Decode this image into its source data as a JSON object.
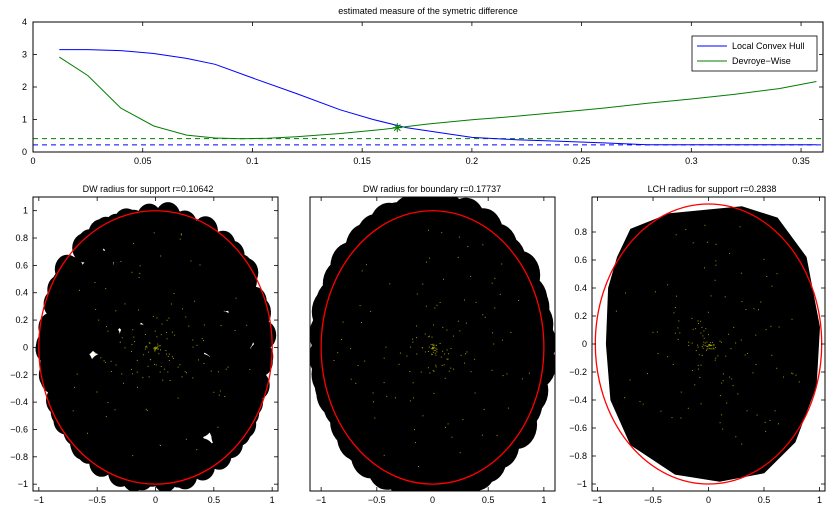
{
  "chart_data": [
    {
      "type": "line",
      "title": "estimated measure of the symetric difference",
      "xlabel": "",
      "ylabel": "",
      "xlim": [
        0,
        0.36
      ],
      "ylim": [
        0,
        4
      ],
      "xticks": [
        0,
        0.05,
        0.1,
        0.15,
        0.2,
        0.25,
        0.3,
        0.35
      ],
      "xtick_labels": [
        "0",
        "0.05",
        "0.1",
        "0.15",
        "0.2",
        "0.25",
        "0.3",
        "0.35"
      ],
      "yticks": [
        0,
        1,
        2,
        3,
        4
      ],
      "ytick_labels": [
        "0",
        "1",
        "2",
        "3",
        "4"
      ],
      "legend_position": "top-right",
      "series": [
        {
          "name": "Local Convex Hull",
          "color": "#0000ff",
          "x": [
            0.012,
            0.025,
            0.04,
            0.055,
            0.07,
            0.083,
            0.1,
            0.12,
            0.14,
            0.155,
            0.17,
            0.19,
            0.2,
            0.22,
            0.24,
            0.26,
            0.28,
            0.3,
            0.32,
            0.34,
            0.357
          ],
          "y": [
            3.15,
            3.15,
            3.12,
            3.03,
            2.88,
            2.7,
            2.28,
            1.8,
            1.3,
            1.0,
            0.75,
            0.55,
            0.45,
            0.38,
            0.33,
            0.28,
            0.22,
            0.22,
            0.22,
            0.22,
            0.22
          ]
        },
        {
          "name": "Devroye−Wise",
          "color": "#007f00",
          "x": [
            0.012,
            0.025,
            0.04,
            0.055,
            0.07,
            0.083,
            0.095,
            0.107,
            0.12,
            0.14,
            0.16,
            0.18,
            0.2,
            0.22,
            0.24,
            0.26,
            0.28,
            0.3,
            0.32,
            0.34,
            0.357
          ],
          "y": [
            2.92,
            2.35,
            1.35,
            0.8,
            0.52,
            0.43,
            0.41,
            0.42,
            0.47,
            0.57,
            0.7,
            0.86,
            0.99,
            1.1,
            1.22,
            1.35,
            1.5,
            1.63,
            1.78,
            1.95,
            2.17
          ]
        }
      ],
      "reference_lines": [
        {
          "orientation": "horizontal",
          "y": 0.41,
          "color": "#007f00",
          "style": "dashed"
        },
        {
          "orientation": "horizontal",
          "y": 0.22,
          "color": "#0000ff",
          "style": "dashed"
        }
      ],
      "markers": [
        {
          "x": 0.166,
          "y": 0.75,
          "symbol": "asterisk",
          "color": "#007f00"
        }
      ]
    },
    {
      "type": "scatter",
      "title": "DW radius for support r=0.10642",
      "xlim": [
        -1.05,
        1.05
      ],
      "ylim": [
        -1.05,
        1.1
      ],
      "xticks": [
        -1,
        -0.5,
        0,
        0.5,
        1
      ],
      "xtick_labels": [
        "−1",
        "−0.5",
        "0",
        "0.5",
        "1"
      ],
      "yticks": [
        -1,
        -0.8,
        -0.6,
        -0.4,
        -0.2,
        0,
        0.2,
        0.4,
        0.6,
        0.8,
        1
      ],
      "ytick_labels": [
        "−1",
        "−0.8",
        "−0.6",
        "−0.4",
        "−0.2",
        "0",
        "0.2",
        "0.4",
        "0.6",
        "0.8",
        "1"
      ],
      "radius": 0.10642,
      "fill_color": "#000000",
      "boundary": {
        "shape": "ellipse",
        "center": [
          0,
          0
        ],
        "rx": 1,
        "ry": 1,
        "color": "#ff0000"
      }
    },
    {
      "type": "scatter",
      "title": "DW radius for boundary r=0.17737",
      "xlim": [
        -1.1,
        1.1
      ],
      "ylim": [
        -1.05,
        1.1
      ],
      "xticks": [
        -1,
        -0.5,
        0,
        0.5,
        1
      ],
      "xtick_labels": [
        "−1",
        "−0.5",
        "0",
        "0.5",
        "1"
      ],
      "radius": 0.17737,
      "fill_color": "#000000",
      "boundary": {
        "shape": "ellipse",
        "center": [
          0,
          0
        ],
        "rx": 1,
        "ry": 1,
        "color": "#ff0000"
      }
    },
    {
      "type": "scatter",
      "title": "LCH radius for support r=0.2838",
      "xlim": [
        -1.05,
        1.05
      ],
      "ylim": [
        -1.05,
        1.05
      ],
      "xticks": [
        -1,
        -0.5,
        0,
        0.5,
        1
      ],
      "xtick_labels": [
        "−1",
        "−0.5",
        "0",
        "0.5",
        "1"
      ],
      "yticks": [
        -1,
        -0.8,
        -0.6,
        -0.4,
        -0.2,
        0,
        0.2,
        0.4,
        0.6,
        0.8
      ],
      "ytick_labels": [
        "−1",
        "−0.8",
        "−0.6",
        "−0.4",
        "−0.2",
        "0",
        "0.2",
        "0.4",
        "0.6",
        "0.8"
      ],
      "radius": 0.2838,
      "fill_color": "#000000",
      "hull_vertices": [
        [
          -0.7,
          0.82
        ],
        [
          -0.35,
          0.93
        ],
        [
          0.3,
          0.98
        ],
        [
          0.62,
          0.9
        ],
        [
          0.88,
          0.62
        ],
        [
          1.0,
          0.12
        ],
        [
          0.97,
          -0.3
        ],
        [
          0.78,
          -0.7
        ],
        [
          0.5,
          -0.92
        ],
        [
          0.1,
          -0.98
        ],
        [
          -0.3,
          -0.93
        ],
        [
          -0.7,
          -0.72
        ],
        [
          -0.88,
          -0.4
        ],
        [
          -0.92,
          0.0
        ],
        [
          -0.9,
          0.4
        ],
        [
          -0.82,
          0.62
        ]
      ],
      "boundary": {
        "shape": "ellipse",
        "center": [
          0,
          0
        ],
        "rx": 1.02,
        "ry": 1.0,
        "color": "#ff0000"
      }
    }
  ]
}
